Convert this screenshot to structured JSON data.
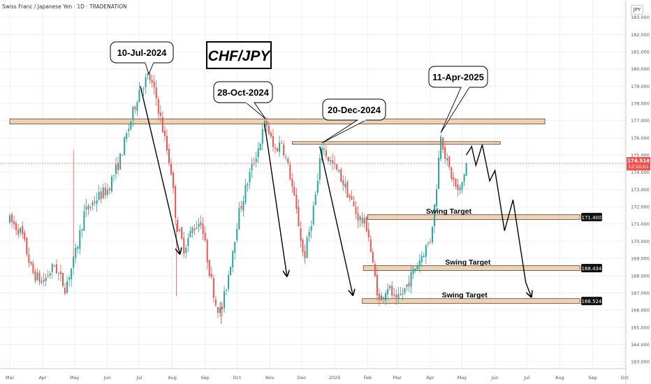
{
  "header": {
    "title": "Swiss Franc / Japanese Yen · 1D · TRADENATION"
  },
  "currency_badge": "JPY",
  "chart_data": {
    "type": "candlestick",
    "title": "CHF/JPY",
    "y_ticks": [
      "183.000",
      "182.000",
      "181.000",
      "180.000",
      "179.000",
      "178.000",
      "177.000",
      "176.000",
      "175.000",
      "174.000",
      "173.000",
      "172.000",
      "171.000",
      "170.000",
      "169.000",
      "168.000",
      "167.000",
      "166.000",
      "165.000",
      "164.000",
      "163.000"
    ],
    "ylim": [
      162.6,
      184.0
    ],
    "x_ticks": [
      "Mar",
      "Apr",
      "May",
      "Jun",
      "Jul",
      "Aug",
      "Sep",
      "Oct",
      "Nov",
      "Dec",
      "2025",
      "Feb",
      "Mar",
      "Apr",
      "May",
      "Jun",
      "Jul",
      "Aug",
      "Sep",
      "Oct"
    ],
    "grid": true,
    "close_path": [
      [
        "2024-03-01",
        171.2
      ],
      [
        "2024-03-12",
        170.5
      ],
      [
        "2024-03-22",
        168.2
      ],
      [
        "2024-04-01",
        167.6
      ],
      [
        "2024-04-12",
        168.6
      ],
      [
        "2024-04-22",
        167.3
      ],
      [
        "2024-05-01",
        169.0
      ],
      [
        "2024-05-10",
        171.6
      ],
      [
        "2024-05-22",
        172.5
      ],
      [
        "2024-06-01",
        173.0
      ],
      [
        "2024-06-12",
        174.6
      ],
      [
        "2024-06-22",
        176.8
      ],
      [
        "2024-07-01",
        178.8
      ],
      [
        "2024-07-10",
        179.6
      ],
      [
        "2024-07-17",
        178.3
      ],
      [
        "2024-07-24",
        176.2
      ],
      [
        "2024-07-31",
        174.1
      ],
      [
        "2024-08-05",
        171.0
      ],
      [
        "2024-08-12",
        169.6
      ],
      [
        "2024-08-20",
        170.7
      ],
      [
        "2024-08-28",
        171.2
      ],
      [
        "2024-09-05",
        168.3
      ],
      [
        "2024-09-11",
        166.4
      ],
      [
        "2024-09-16",
        165.8
      ],
      [
        "2024-09-24",
        168.4
      ],
      [
        "2024-10-02",
        171.4
      ],
      [
        "2024-10-12",
        173.7
      ],
      [
        "2024-10-22",
        175.6
      ],
      [
        "2024-10-28",
        177.0
      ],
      [
        "2024-11-05",
        175.2
      ],
      [
        "2024-11-12",
        175.8
      ],
      [
        "2024-11-20",
        173.8
      ],
      [
        "2024-11-28",
        171.0
      ],
      [
        "2024-12-03",
        168.9
      ],
      [
        "2024-12-10",
        171.2
      ],
      [
        "2024-12-16",
        173.4
      ],
      [
        "2024-12-20",
        175.6
      ],
      [
        "2024-12-26",
        174.8
      ],
      [
        "2025-01-06",
        173.8
      ],
      [
        "2025-01-14",
        172.7
      ],
      [
        "2025-01-22",
        171.5
      ],
      [
        "2025-02-01",
        170.8
      ],
      [
        "2025-02-05",
        168.9
      ],
      [
        "2025-02-12",
        166.5
      ],
      [
        "2025-02-20",
        167.4
      ],
      [
        "2025-02-28",
        166.4
      ],
      [
        "2025-03-08",
        167.2
      ],
      [
        "2025-03-16",
        168.2
      ],
      [
        "2025-03-24",
        169.2
      ],
      [
        "2025-04-01",
        170.1
      ],
      [
        "2025-04-06",
        172.5
      ],
      [
        "2025-04-11",
        176.3
      ],
      [
        "2025-04-16",
        174.7
      ],
      [
        "2025-04-22",
        173.6
      ],
      [
        "2025-04-28",
        172.7
      ],
      [
        "2025-05-01",
        173.4
      ],
      [
        "2025-05-05",
        174.5
      ]
    ],
    "projection_path": [
      [
        "2025-05-05",
        175.0
      ],
      [
        "2025-05-10",
        175.5
      ],
      [
        "2025-05-14",
        174.4
      ],
      [
        "2025-05-20",
        175.6
      ],
      [
        "2025-05-27",
        173.5
      ],
      [
        "2025-06-01",
        174.1
      ],
      [
        "2025-06-10",
        170.6
      ],
      [
        "2025-06-18",
        172.4
      ],
      [
        "2025-06-30",
        167.6
      ],
      [
        "2025-07-05",
        166.8
      ]
    ],
    "resistance_zones": [
      {
        "start": "2024-03-01",
        "end": "2025-07-18",
        "top": 177.1,
        "bottom": 176.8
      },
      {
        "start": "2024-11-22",
        "end": "2025-06-06",
        "top": 175.78,
        "bottom": 175.62
      }
    ],
    "swing_targets": [
      {
        "label": "Swing Target",
        "price_label": "171.400",
        "value": 171.4,
        "start": "2025-02-01",
        "end": "2025-08-20"
      },
      {
        "label": "Swing Target",
        "price_label": "168.434",
        "value": 168.434,
        "start": "2025-01-28",
        "end": "2025-08-20"
      },
      {
        "label": "Swing Target",
        "price_label": "166.524",
        "value": 166.524,
        "start": "2025-01-27",
        "end": "2025-08-20"
      }
    ],
    "annotations": [
      {
        "label": "10-Jul-2024",
        "date": "2024-07-10",
        "price": 179.7
      },
      {
        "label": "28-Oct-2024",
        "date": "2024-10-28",
        "price": 177.1
      },
      {
        "label": "20-Dec-2024",
        "date": "2024-12-20",
        "price": 175.7
      },
      {
        "label": "11-Apr-2025",
        "date": "2025-04-11",
        "price": 176.3
      }
    ],
    "trend_arrows": [
      {
        "from": [
          "2024-07-02",
          179.0
        ],
        "to": [
          "2024-08-08",
          169.3
        ]
      },
      {
        "from": [
          "2024-10-27",
          176.8
        ],
        "to": [
          "2024-11-17",
          168.0
        ]
      },
      {
        "from": [
          "2024-12-18",
          175.5
        ],
        "to": [
          "2025-01-18",
          166.9
        ]
      }
    ],
    "current_price": {
      "value": 174.514,
      "label": "174.514",
      "countdown": "12:10:01"
    },
    "colors": {
      "up": "#26a69a",
      "down": "#ef5350",
      "zone_fill": "#ecd3b6",
      "zone_border": "#5a4632",
      "line": "#000000",
      "grid": "#eef0f3",
      "price_line": "#ef5350"
    }
  }
}
